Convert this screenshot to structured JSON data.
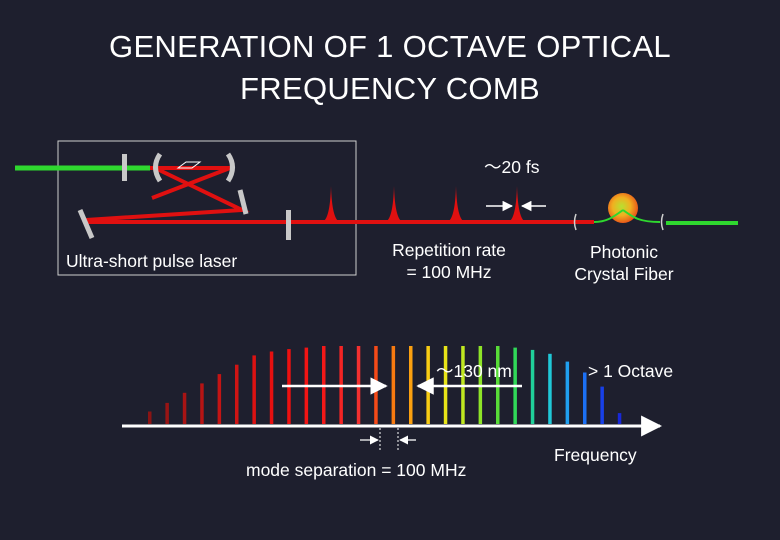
{
  "title": {
    "line1": "GENERATION OF 1 OCTAVE OPTICAL",
    "line2": "FREQUENCY COMB"
  },
  "labels": {
    "pulse_width": "～20 fs",
    "laser": "Ultra-short pulse laser",
    "rep_rate_line1": "Repetition rate",
    "rep_rate_line2": "= 100 MHz",
    "pcf_line1": "Photonic",
    "pcf_line2": "Crystal Fiber",
    "bandwidth": "～130 nm",
    "octave": "> 1 Octave",
    "mode_sep": "mode separation = 100 MHz",
    "frequency_axis": "Frequency"
  },
  "colors": {
    "background": "#1e1f2e",
    "beam_green": "#2fd82f",
    "beam_red": "#e01010",
    "mirror": "#c8c8c8"
  },
  "comb_lines": [
    {
      "h": 0.16,
      "color": "#8b1414"
    },
    {
      "h": 0.27,
      "color": "#991414"
    },
    {
      "h": 0.4,
      "color": "#a81414"
    },
    {
      "h": 0.52,
      "color": "#b71414"
    },
    {
      "h": 0.64,
      "color": "#c41414"
    },
    {
      "h": 0.76,
      "color": "#d01414"
    },
    {
      "h": 0.88,
      "color": "#dc1212"
    },
    {
      "h": 0.93,
      "color": "#e61010"
    },
    {
      "h": 0.96,
      "color": "#ee1010"
    },
    {
      "h": 0.98,
      "color": "#f21414"
    },
    {
      "h": 1.0,
      "color": "#f41818"
    },
    {
      "h": 1.0,
      "color": "#f42424"
    },
    {
      "h": 1.0,
      "color": "#f43030"
    },
    {
      "h": 1.0,
      "color": "#f64a18"
    },
    {
      "h": 1.0,
      "color": "#f87a10"
    },
    {
      "h": 1.0,
      "color": "#fba010"
    },
    {
      "h": 1.0,
      "color": "#f8cc14"
    },
    {
      "h": 1.0,
      "color": "#e8e418"
    },
    {
      "h": 1.0,
      "color": "#c0e820"
    },
    {
      "h": 1.0,
      "color": "#8ee428"
    },
    {
      "h": 1.0,
      "color": "#58dc38"
    },
    {
      "h": 0.98,
      "color": "#30d858"
    },
    {
      "h": 0.95,
      "color": "#20d09a"
    },
    {
      "h": 0.9,
      "color": "#20c8d8"
    },
    {
      "h": 0.8,
      "color": "#20a0f0"
    },
    {
      "h": 0.66,
      "color": "#1c70f4"
    },
    {
      "h": 0.48,
      "color": "#1840e8"
    },
    {
      "h": 0.14,
      "color": "#1828d8"
    }
  ]
}
